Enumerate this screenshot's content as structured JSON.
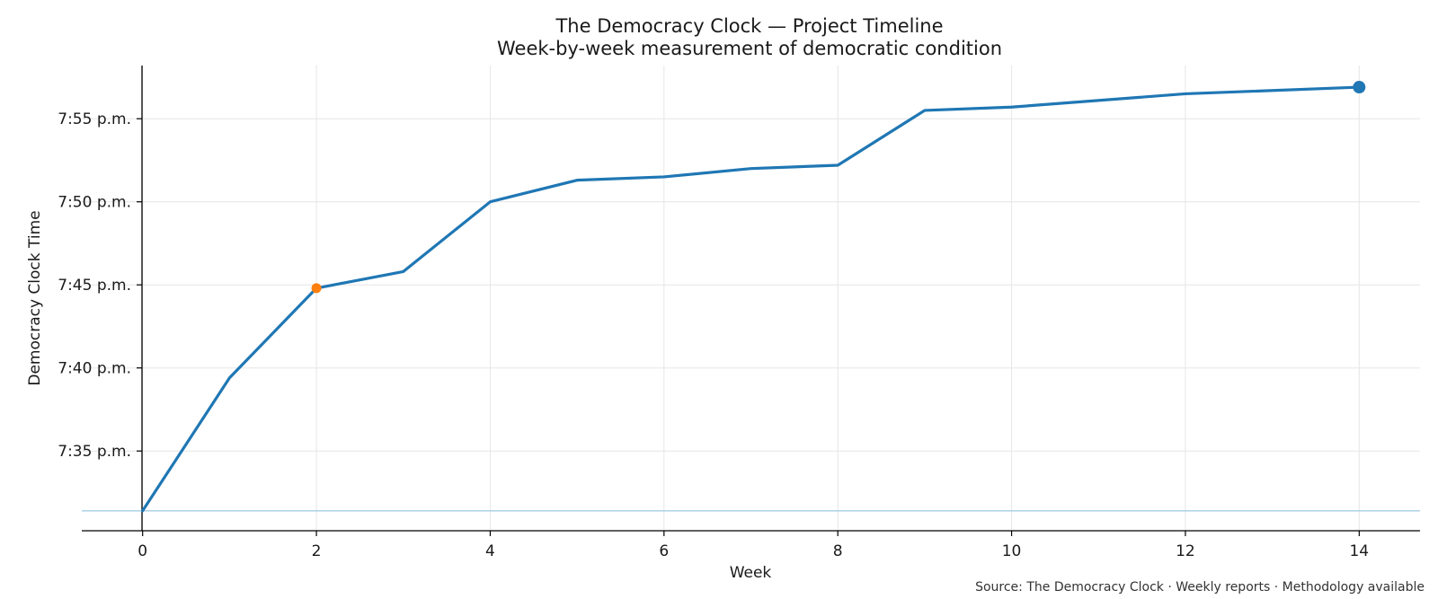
{
  "chart_data": {
    "type": "line",
    "title": "The Democracy Clock — Project Timeline",
    "subtitle": "Week-by-week measurement of democratic condition",
    "xlabel": "Week",
    "ylabel": "Democracy Clock Time",
    "xlim": [
      -0.7,
      14.7
    ],
    "ylim": [
      "7:30.2 p.m.",
      "7:58.2 p.m."
    ],
    "x_ticks": [
      0,
      2,
      4,
      6,
      8,
      10,
      12,
      14
    ],
    "y_ticks": [
      {
        "label": "7:35 p.m.",
        "minutes": 35
      },
      {
        "label": "7:40 p.m.",
        "minutes": 40
      },
      {
        "label": "7:45 p.m.",
        "minutes": 45
      },
      {
        "label": "7:50 p.m.",
        "minutes": 50
      },
      {
        "label": "7:55 p.m.",
        "minutes": 55
      }
    ],
    "grid": true,
    "series": [
      {
        "color": "#1f77b4",
        "x": [
          0,
          1,
          2,
          3,
          4,
          5,
          6,
          7,
          8,
          9,
          10,
          12,
          14
        ],
        "y_minutes": [
          31.4,
          39.4,
          44.8,
          45.8,
          50.0,
          51.3,
          51.5,
          52.0,
          52.2,
          55.5,
          55.7,
          56.5,
          56.9
        ]
      }
    ],
    "highlight_points": [
      {
        "x": 2,
        "y_minutes": 44.8,
        "color": "#ff7f0e"
      },
      {
        "x": 14,
        "y_minutes": 56.9,
        "color": "#1f77b4"
      }
    ],
    "baseline": {
      "y_minutes": 31.4,
      "color": "#a6cee3"
    },
    "source_note": "Source: The Democracy Clock · Weekly reports · Methodology available"
  }
}
